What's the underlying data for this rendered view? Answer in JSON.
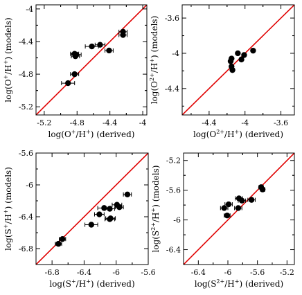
{
  "chart_data": [
    {
      "type": "scatter",
      "xlabel_main": "log(O",
      "xlabel_sup": "+",
      "xlabel_rest": "/H",
      "xlabel_sup2": "+",
      "xlabel_tail": ") (derived)",
      "ylabel_main": "log(O",
      "ylabel_sup": "+",
      "ylabel_rest": "/H",
      "ylabel_sup2": "+",
      "ylabel_tail": ") (models)",
      "xlim": [
        -5.3,
        -3.95
      ],
      "ylim": [
        -5.3,
        -3.95
      ],
      "xticks": [
        -5.2,
        -4.8,
        -4.4,
        -4.0
      ],
      "yticks": [
        -5.2,
        -4.8,
        -4.4,
        -4.0
      ],
      "xtick_labels": [
        "-5.2",
        "-4.8",
        "-4.4",
        "-4"
      ],
      "ytick_labels": [
        "-5.2",
        "-4.8",
        "-4.4",
        "-4"
      ],
      "line": [
        [
          -5.3,
          -5.3
        ],
        [
          -3.95,
          -3.95
        ]
      ],
      "points": [
        {
          "x": -4.24,
          "y": -4.28,
          "xerr": 0.05
        },
        {
          "x": -4.24,
          "y": -4.32,
          "xerr": 0.05
        },
        {
          "x": -4.52,
          "y": -4.44,
          "xerr": 0.06
        },
        {
          "x": -4.62,
          "y": -4.46,
          "xerr": 0.08
        },
        {
          "x": -4.41,
          "y": -4.51,
          "xerr": 0.05
        },
        {
          "x": -4.83,
          "y": -4.55,
          "xerr": 0.05
        },
        {
          "x": -4.81,
          "y": -4.56,
          "xerr": 0.06
        },
        {
          "x": -4.82,
          "y": -4.58,
          "xerr": 0.05
        },
        {
          "x": -4.83,
          "y": -4.8,
          "xerr": 0.05
        },
        {
          "x": -4.91,
          "y": -4.91,
          "xerr": 0.08
        }
      ]
    },
    {
      "type": "scatter",
      "xlabel_main": "log(O",
      "xlabel_sup": "2+",
      "xlabel_rest": "/H",
      "xlabel_sup2": "+",
      "xlabel_tail": ") (derived)",
      "ylabel_main": "log(O",
      "ylabel_sup": "2+",
      "ylabel_rest": "/H",
      "ylabel_sup2": "+",
      "ylabel_tail": ") (models)",
      "xlim": [
        -4.7,
        -3.45
      ],
      "ylim": [
        -4.7,
        -3.45
      ],
      "xticks": [
        -4.4,
        -4.0,
        -3.6
      ],
      "yticks": [
        -4.4,
        -4.0,
        -3.6
      ],
      "xtick_labels": [
        "-4.4",
        "-4",
        "-3.6"
      ],
      "ytick_labels": [
        "-4.4",
        "-4",
        "-3.6"
      ],
      "line": [
        [
          -4.7,
          -4.7
        ],
        [
          -3.45,
          -3.45
        ]
      ],
      "points": [
        {
          "x": -3.91,
          "y": -3.97
        },
        {
          "x": -4.08,
          "y": -4.0
        },
        {
          "x": -4.01,
          "y": -4.02
        },
        {
          "x": -4.04,
          "y": -4.07
        },
        {
          "x": -4.15,
          "y": -4.06
        },
        {
          "x": -4.16,
          "y": -4.09
        },
        {
          "x": -4.15,
          "y": -4.15
        },
        {
          "x": -4.14,
          "y": -4.19
        }
      ]
    },
    {
      "type": "scatter",
      "xlabel_main": "log(S",
      "xlabel_sup": "+",
      "xlabel_rest": "/H",
      "xlabel_sup2": "+",
      "xlabel_tail": ") (derived)",
      "ylabel_main": "log(S",
      "ylabel_sup": "+",
      "ylabel_rest": "/H",
      "ylabel_sup2": "+",
      "ylabel_tail": ") (models)",
      "xlim": [
        -7.0,
        -5.6
      ],
      "ylim": [
        -7.0,
        -5.6
      ],
      "xticks": [
        -6.8,
        -6.4,
        -6.0,
        -5.6
      ],
      "yticks": [
        -6.8,
        -6.4,
        -6.0,
        -5.6
      ],
      "xtick_labels": [
        "-6.8",
        "-6.4",
        "-6",
        "-5.6"
      ],
      "ytick_labels": [
        "-6.8",
        "-6.4",
        "-6",
        "-5.6"
      ],
      "line": [
        [
          -7.0,
          -7.0
        ],
        [
          -5.6,
          -5.6
        ]
      ],
      "points": [
        {
          "x": -5.86,
          "y": -6.12,
          "xerr": 0.05
        },
        {
          "x": -5.99,
          "y": -6.25,
          "xerr": 0.06
        },
        {
          "x": -5.96,
          "y": -6.28,
          "xerr": 0.05
        },
        {
          "x": -6.15,
          "y": -6.29,
          "xerr": 0.08
        },
        {
          "x": -6.08,
          "y": -6.3,
          "xerr": 0.06
        },
        {
          "x": -6.21,
          "y": -6.37,
          "xerr": 0.06
        },
        {
          "x": -6.07,
          "y": -6.42,
          "xerr": 0.06
        },
        {
          "x": -6.08,
          "y": -6.43,
          "xerr": 0.06
        },
        {
          "x": -6.31,
          "y": -6.5,
          "xerr": 0.08
        },
        {
          "x": -6.67,
          "y": -6.68,
          "xerr": 0.04
        },
        {
          "x": -6.72,
          "y": -6.74,
          "xerr": 0.04
        }
      ]
    },
    {
      "type": "scatter",
      "xlabel_main": "log(S",
      "xlabel_sup": "2+",
      "xlabel_rest": "/H",
      "xlabel_sup2": "+",
      "xlabel_tail": ") (derived)",
      "ylabel_main": "log(S",
      "ylabel_sup": "2+",
      "ylabel_rest": "/H",
      "ylabel_sup2": "+",
      "ylabel_tail": ") (models)",
      "xlim": [
        -6.6,
        -5.1
      ],
      "ylim": [
        -6.6,
        -5.1
      ],
      "xticks": [
        -6.4,
        -6.0,
        -5.6,
        -5.2
      ],
      "yticks": [
        -6.4,
        -6.0,
        -5.6,
        -5.2
      ],
      "xtick_labels": [
        "-6.4",
        "-6",
        "-5.6",
        "-5.2"
      ],
      "ytick_labels": [
        "-6.4",
        "-6",
        "-5.6",
        "-5.2"
      ],
      "line": [
        [
          -6.6,
          -6.6
        ],
        [
          -5.1,
          -5.1
        ]
      ],
      "points": [
        {
          "x": -5.55,
          "y": -5.56,
          "xerr": 0.03
        },
        {
          "x": -5.53,
          "y": -5.59,
          "xerr": 0.03
        },
        {
          "x": -5.85,
          "y": -5.71,
          "xerr": 0.05
        },
        {
          "x": -5.68,
          "y": -5.73,
          "xerr": 0.05
        },
        {
          "x": -5.81,
          "y": -5.74,
          "xerr": 0.05
        },
        {
          "x": -5.99,
          "y": -5.79,
          "xerr": 0.05
        },
        {
          "x": -6.05,
          "y": -5.84,
          "xerr": 0.05
        },
        {
          "x": -5.86,
          "y": -5.84,
          "xerr": 0.05
        },
        {
          "x": -6.01,
          "y": -5.94,
          "xerr": 0.04
        }
      ]
    }
  ]
}
